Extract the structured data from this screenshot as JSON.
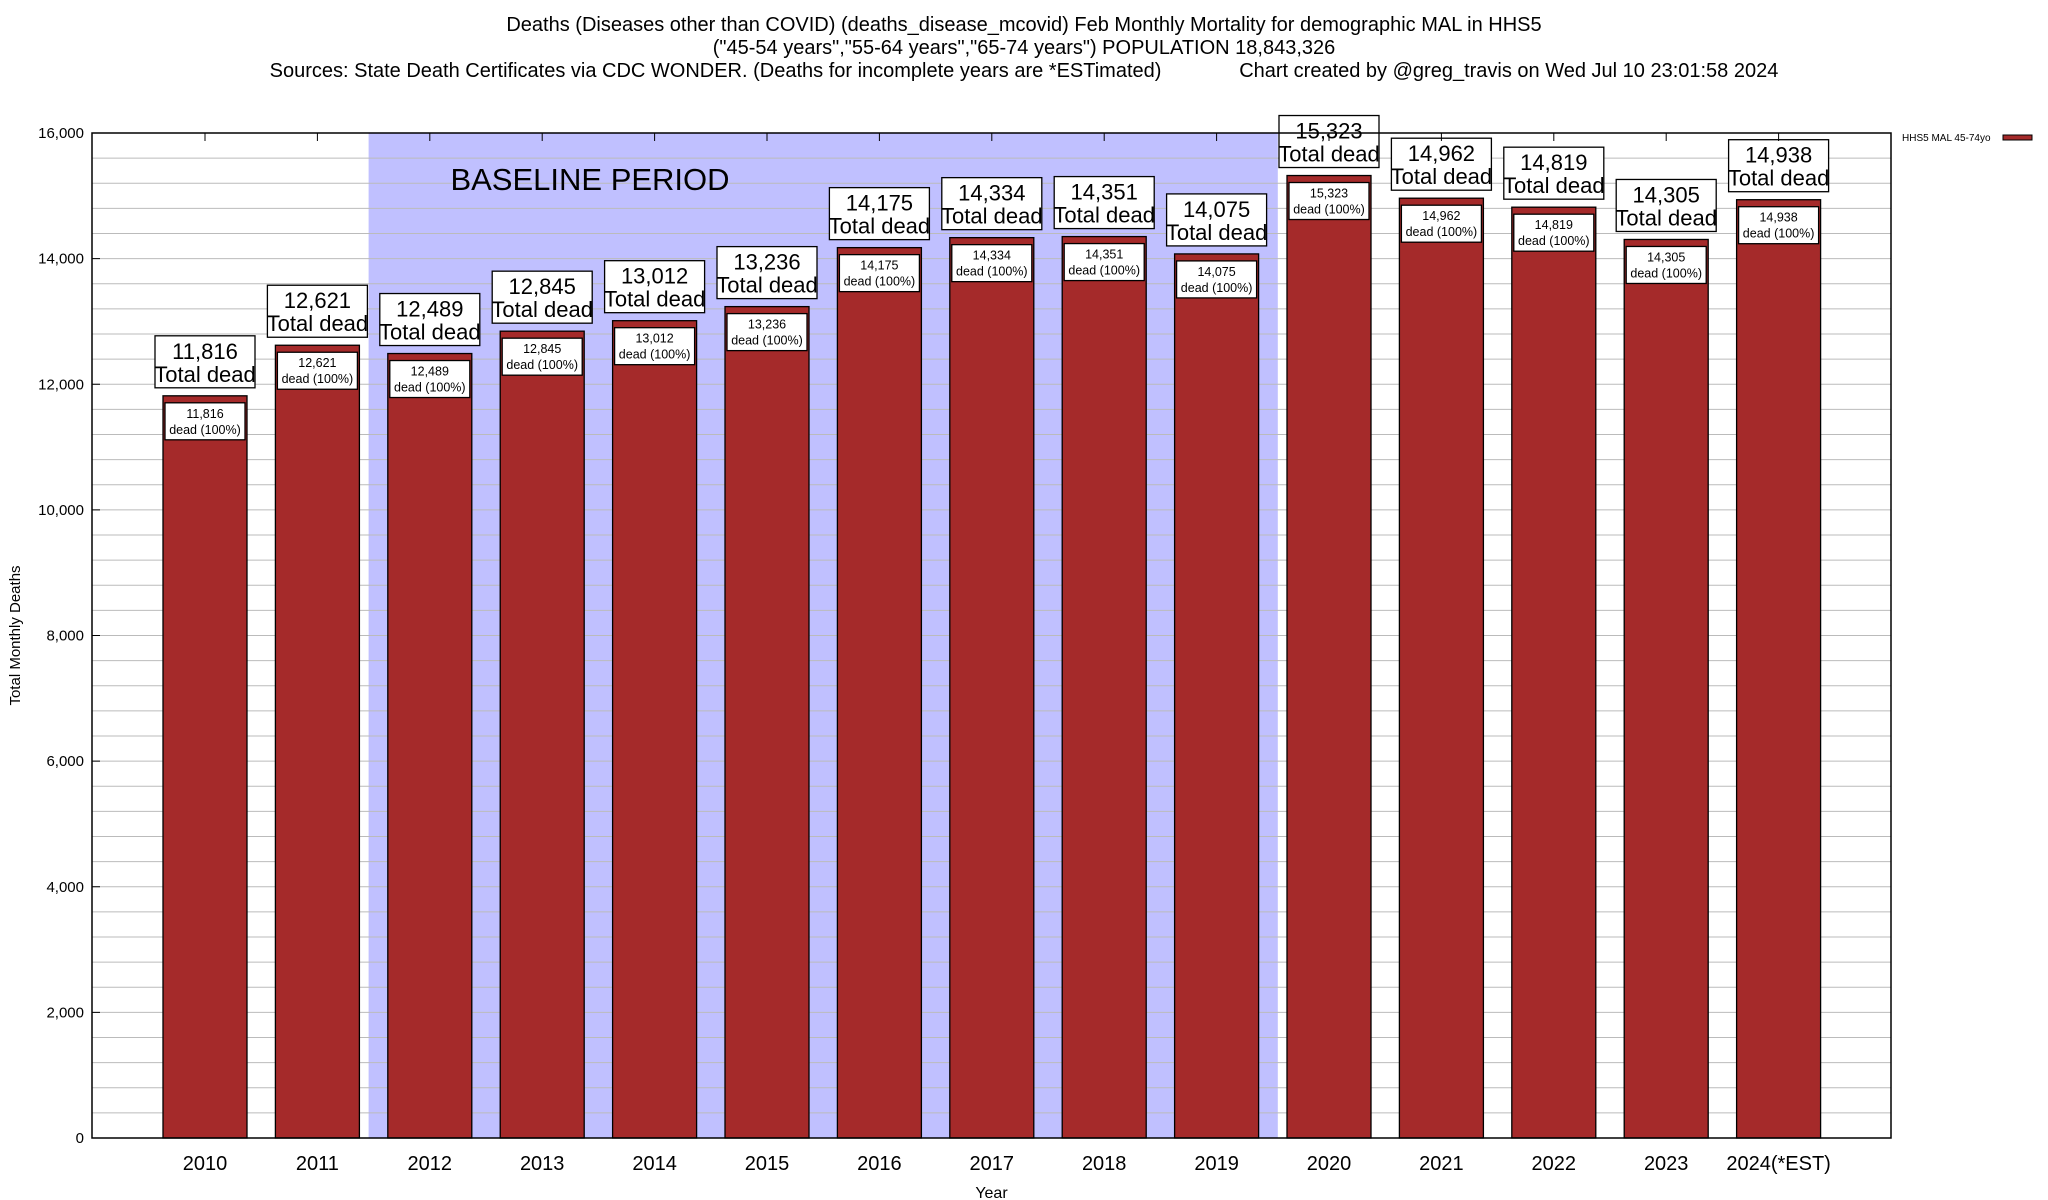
{
  "title_lines": [
    "Deaths (Diseases other than COVID) (deaths_disease_mcovid) Feb Monthly Mortality for demographic MAL in HHS5",
    "(\"45-54 years\",\"55-64 years\",\"65-74 years\") POPULATION 18,843,326",
    "Sources: State Death Certificates via CDC WONDER. (Deaths for incomplete years are *ESTimated)              Chart created by @greg_travis on Wed Jul 10 23:01:58 2024"
  ],
  "chart_data": {
    "type": "bar",
    "xlabel": "Year",
    "ylabel": "Total Monthly Deaths",
    "ylim": [
      0,
      16000
    ],
    "yticks": [
      0,
      2000,
      4000,
      6000,
      8000,
      10000,
      12000,
      14000,
      16000
    ],
    "ytick_labels": [
      "0",
      "2,000",
      "4,000",
      "6,000",
      "8,000",
      "10,000",
      "12,000",
      "14,000",
      "16,000"
    ],
    "minor_grid_step": 400,
    "grid": true,
    "legend_position": "top-right",
    "categories": [
      "2010",
      "2011",
      "2012",
      "2013",
      "2014",
      "2015",
      "2016",
      "2017",
      "2018",
      "2019",
      "2020",
      "2021",
      "2022",
      "2023",
      "2024(*EST)"
    ],
    "series": [
      {
        "name": "HHS5 MAL 45-74yo",
        "color": "#a52a2a",
        "values": [
          11816,
          12621,
          12489,
          12845,
          13012,
          13236,
          14175,
          14334,
          14351,
          14075,
          15323,
          14962,
          14819,
          14305,
          14938
        ]
      }
    ],
    "total_labels": [
      "11,816",
      "12,621",
      "12,489",
      "12,845",
      "13,012",
      "13,236",
      "14,175",
      "14,334",
      "14,351",
      "14,075",
      "15,323",
      "14,962",
      "14,819",
      "14,305",
      "14,938"
    ],
    "total_suffix": "Total dead",
    "inner_suffix": "dead (100%)",
    "baseline": {
      "label": "BASELINE PERIOD",
      "from": "2012",
      "to": "2019",
      "color": "#c0c0ff"
    }
  }
}
